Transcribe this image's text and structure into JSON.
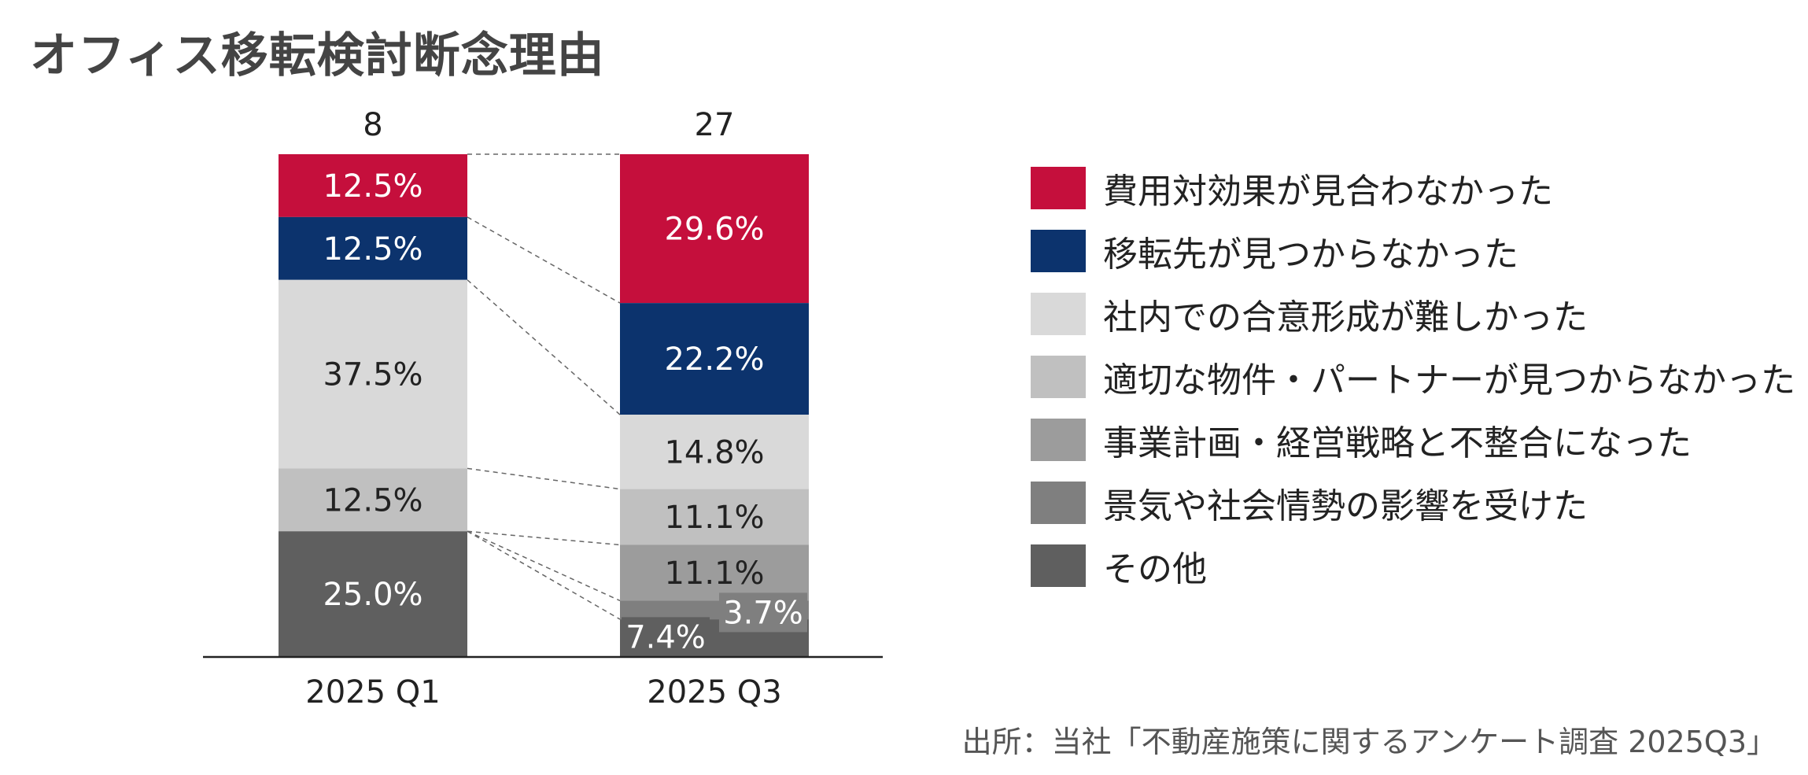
{
  "chart_data": {
    "type": "bar",
    "stacked": true,
    "normalized": true,
    "title": "オフィス移転検討断念理由",
    "categories": [
      "2025 Q1",
      "2025 Q3"
    ],
    "totals": [
      "8",
      "27"
    ],
    "series": [
      {
        "name": "費用対効果が見合わなかった",
        "color": "#C50F3C",
        "text_color": "#ffffff",
        "values": [
          12.5,
          29.6
        ],
        "labels": [
          "12.5%",
          "29.6%"
        ]
      },
      {
        "name": "移転先が見つからなかった",
        "color": "#0C336D",
        "text_color": "#ffffff",
        "values": [
          12.5,
          22.2
        ],
        "labels": [
          "12.5%",
          "22.2%"
        ]
      },
      {
        "name": "社内での合意形成が難しかった",
        "color": "#D9D9D9",
        "text_color": "#222222",
        "values": [
          37.5,
          14.8
        ],
        "labels": [
          "37.5%",
          "14.8%"
        ]
      },
      {
        "name": "適切な物件・パートナーが見つからなかった",
        "color": "#C0C0C0",
        "text_color": "#222222",
        "values": [
          12.5,
          11.1
        ],
        "labels": [
          "12.5%",
          "11.1%"
        ]
      },
      {
        "name": "事業計画・経営戦略と不整合になった",
        "color": "#9C9C9C",
        "text_color": "#222222",
        "values": [
          0,
          11.1
        ],
        "labels": [
          "",
          "11.1%"
        ]
      },
      {
        "name": "景気や社会情勢の影響を受けた",
        "color": "#7F7F7F",
        "text_color": "#ffffff",
        "values": [
          0,
          3.7
        ],
        "labels": [
          "",
          "3.7%"
        ]
      },
      {
        "name": "その他",
        "color": "#5F5F5F",
        "text_color": "#ffffff",
        "values": [
          25.0,
          7.4
        ],
        "labels": [
          "25.0%",
          "7.4%"
        ]
      }
    ],
    "ylim": [
      0,
      100
    ],
    "source": "出所：当社「不動産施策に関するアンケート調査 2025Q3」"
  }
}
